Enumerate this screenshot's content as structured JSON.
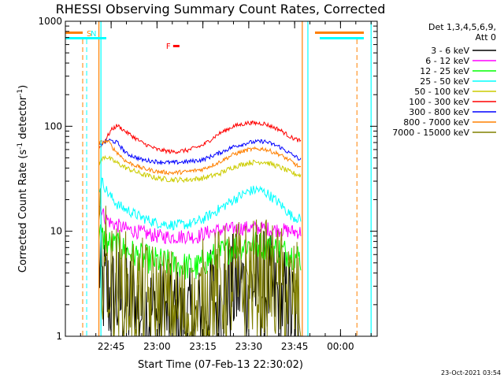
{
  "chart_data": {
    "type": "line",
    "title": "RHESSI Observing Summary Count Rates, Corrected",
    "xlabel": "Start Time (07-Feb-13 22:30:02)",
    "ylabel_parts": [
      "Corrected Count Rate (s",
      "-1",
      " detector",
      "-1",
      ")"
    ],
    "y_scale": "log",
    "ylim": [
      1,
      1000
    ],
    "y_ticks": [
      {
        "v": 1,
        "label": "1"
      },
      {
        "v": 10,
        "label": "10"
      },
      {
        "v": 100,
        "label": "100"
      },
      {
        "v": 1000,
        "label": "1000"
      }
    ],
    "xlim": [
      "22:30:02",
      "00:12:00"
    ],
    "x_ticks": [
      {
        "t": "22:45",
        "label": "22:45"
      },
      {
        "t": "23:00",
        "label": "23:00"
      },
      {
        "t": "23:15",
        "label": "23:15"
      },
      {
        "t": "23:30",
        "label": "23:30"
      },
      {
        "t": "23:45",
        "label": "23:45"
      },
      {
        "t": "00:00",
        "label": "00:00"
      }
    ],
    "legend_header": [
      "Det 1,3,4,5,6,9,",
      "Att 0"
    ],
    "legend_placement": "right",
    "series": [
      {
        "name": "3 - 6 keV",
        "color": "#000000",
        "noise": 0.55,
        "x": [
          "22:41",
          "22:42",
          "22:45",
          "22:50",
          "22:55",
          "23:00",
          "23:05",
          "23:10",
          "23:13",
          "23:15",
          "23:20",
          "23:25",
          "23:30",
          "23:35",
          "23:40",
          "23:44",
          "23:47"
        ],
        "y": [
          5.5,
          3.0,
          2.3,
          2.1,
          1.8,
          1.6,
          1.4,
          1.3,
          1.2,
          1.8,
          2.3,
          2.8,
          3.2,
          3.0,
          2.3,
          1.7,
          1.3
        ]
      },
      {
        "name": "6 - 12 keV",
        "color": "#ff00ff",
        "noise": 0.07,
        "x": [
          "22:41",
          "22:43",
          "22:45",
          "22:50",
          "22:55",
          "23:00",
          "23:05",
          "23:10",
          "23:13",
          "23:15",
          "23:20",
          "23:25",
          "23:30",
          "23:35",
          "23:40",
          "23:44",
          "23:47"
        ],
        "y": [
          18,
          13.5,
          12,
          10.5,
          9.7,
          9.0,
          8.8,
          9.0,
          8.8,
          9.5,
          10.2,
          10.5,
          10.8,
          10.6,
          10.3,
          10.0,
          9.8
        ]
      },
      {
        "name": "12 - 25 keV",
        "color": "#00ff00",
        "noise": 0.14,
        "x": [
          "22:41",
          "22:43",
          "22:45",
          "22:50",
          "22:55",
          "23:00",
          "23:05",
          "23:10",
          "23:13",
          "23:15",
          "23:20",
          "23:25",
          "23:30",
          "23:35",
          "23:40",
          "23:44",
          "23:47"
        ],
        "y": [
          10,
          8.0,
          7.5,
          6.5,
          5.6,
          5.2,
          4.8,
          4.6,
          4.5,
          5.0,
          6.0,
          7.0,
          7.5,
          7.3,
          6.6,
          6.0,
          5.6
        ]
      },
      {
        "name": "25 - 50 keV",
        "color": "#00ffff",
        "noise": 0.05,
        "x": [
          "22:41",
          "22:42",
          "22:44",
          "22:47",
          "22:50",
          "22:55",
          "23:00",
          "23:05",
          "23:10",
          "23:12",
          "23:15",
          "23:20",
          "23:25",
          "23:30",
          "23:33",
          "23:36",
          "23:40",
          "23:44",
          "23:47"
        ],
        "y": [
          24,
          30,
          23,
          18,
          16,
          13.5,
          12,
          11.5,
          11.6,
          12,
          13,
          16,
          20,
          24,
          25,
          23,
          18.5,
          14,
          13
        ]
      },
      {
        "name": "50 - 100 keV",
        "color": "#cccc00",
        "noise": 0.025,
        "x": [
          "22:41",
          "22:43",
          "22:45",
          "22:50",
          "22:55",
          "23:00",
          "23:05",
          "23:10",
          "23:15",
          "23:20",
          "23:25",
          "23:30",
          "23:35",
          "23:40",
          "23:44",
          "23:47"
        ],
        "y": [
          45,
          52,
          48,
          40,
          35,
          32,
          31,
          31,
          32,
          35,
          41,
          45,
          46,
          41,
          36,
          34
        ]
      },
      {
        "name": "100 - 300 keV",
        "color": "#ff0000",
        "noise": 0.02,
        "x": [
          "22:41",
          "22:43",
          "22:45",
          "22:47",
          "22:50",
          "22:55",
          "23:00",
          "23:05",
          "23:10",
          "23:15",
          "23:20",
          "23:25",
          "23:30",
          "23:35",
          "23:40",
          "23:44",
          "23:47"
        ],
        "y": [
          62,
          73,
          92,
          102,
          88,
          70,
          60,
          57,
          59,
          66,
          84,
          100,
          108,
          106,
          93,
          78,
          72
        ]
      },
      {
        "name": "300 - 800 keV",
        "color": "#0000ff",
        "noise": 0.02,
        "x": [
          "22:41",
          "22:44",
          "22:47",
          "22:50",
          "22:55",
          "23:00",
          "23:05",
          "23:10",
          "23:15",
          "23:20",
          "23:25",
          "23:30",
          "23:35",
          "23:40",
          "23:44",
          "23:47"
        ],
        "y": [
          65,
          74,
          70,
          55,
          48,
          46,
          45,
          46,
          48,
          55,
          64,
          70,
          72,
          64,
          54,
          48
        ]
      },
      {
        "name": "800 - 7000 keV",
        "color": "#ff8000",
        "noise": 0.02,
        "x": [
          "22:41",
          "22:44",
          "22:46",
          "22:50",
          "22:55",
          "23:00",
          "23:05",
          "23:10",
          "23:15",
          "23:20",
          "23:25",
          "23:30",
          "23:35",
          "23:40",
          "23:44",
          "23:47"
        ],
        "y": [
          70,
          72,
          60,
          46,
          40,
          37,
          36,
          37,
          39,
          45,
          54,
          60,
          61,
          54,
          46,
          40
        ]
      },
      {
        "name": "7000 - 15000 keV",
        "color": "#808000",
        "noise": 0.6,
        "x": [
          "22:41",
          "22:42",
          "22:45",
          "22:50",
          "22:55",
          "23:00",
          "23:05",
          "23:10",
          "23:13",
          "23:15",
          "23:20",
          "23:25",
          "23:30",
          "23:35",
          "23:40",
          "23:44",
          "23:47"
        ],
        "y": [
          7.5,
          6.0,
          3.3,
          2.6,
          2.2,
          2.0,
          1.8,
          1.6,
          1.4,
          2.2,
          2.8,
          3.3,
          3.5,
          3.4,
          3.0,
          2.5,
          2.0
        ]
      }
    ],
    "annotations": [
      {
        "label": "S",
        "color": "#ff8000",
        "time": "22:30:02"
      },
      {
        "label": "N",
        "color": "#00ffff",
        "time": "22:37:00"
      },
      {
        "label": "F",
        "color": "#ff0000",
        "time": "23:04:30"
      }
    ],
    "attenuator_markers": [
      {
        "color": "#ff8000",
        "time": "22:41:00"
      },
      {
        "color": "#00ffff",
        "time": "22:41:40"
      },
      {
        "color": "#ff8000",
        "time": "23:47:30"
      },
      {
        "color": "#00ffff",
        "time": "23:49:20"
      },
      {
        "color": "#00ffff",
        "time": "00:10:00"
      }
    ]
  },
  "footer": {
    "timestamp": "23-Oct-2021 03:54"
  }
}
